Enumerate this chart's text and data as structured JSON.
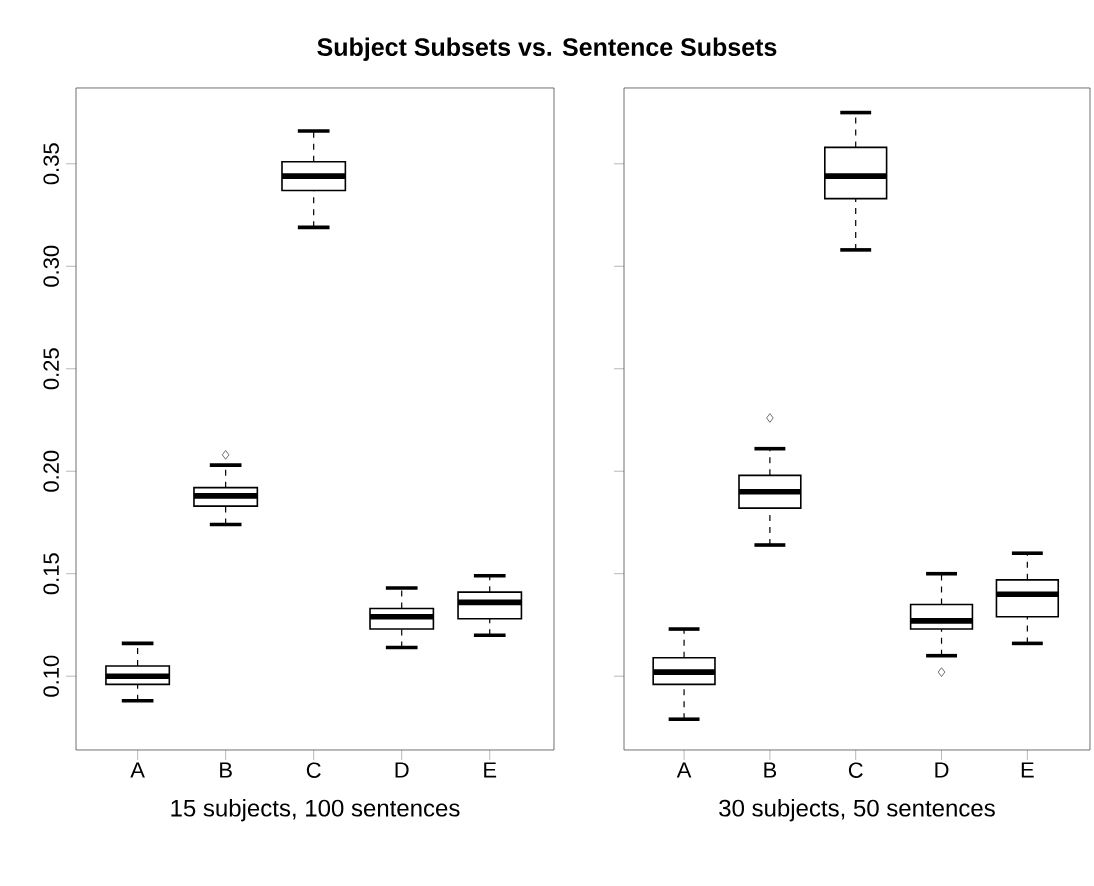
{
  "chart_data": [
    {
      "type": "box",
      "title": "Subject Subsets vs. Sentence Subsets",
      "xlabel": "15 subjects, 100 sentences",
      "categories": [
        "A",
        "B",
        "C",
        "D",
        "E"
      ],
      "boxes": [
        {
          "low": 0.088,
          "q1": 0.096,
          "median": 0.1,
          "q3": 0.105,
          "high": 0.116
        },
        {
          "low": 0.174,
          "q1": 0.183,
          "median": 0.188,
          "q3": 0.192,
          "high": 0.203,
          "outliers": [
            0.208
          ]
        },
        {
          "low": 0.319,
          "q1": 0.337,
          "median": 0.344,
          "q3": 0.351,
          "high": 0.366
        },
        {
          "low": 0.114,
          "q1": 0.123,
          "median": 0.129,
          "q3": 0.133,
          "high": 0.143
        },
        {
          "low": 0.12,
          "q1": 0.128,
          "median": 0.136,
          "q3": 0.141,
          "high": 0.149
        }
      ],
      "ylim": [
        0.064,
        0.387
      ],
      "yticks": [
        {
          "value": 0.1,
          "label": "0.10"
        },
        {
          "value": 0.15,
          "label": "0.15"
        },
        {
          "value": 0.2,
          "label": "0.20"
        },
        {
          "value": 0.25,
          "label": "0.25"
        },
        {
          "value": 0.3,
          "label": "0.30"
        },
        {
          "value": 0.35,
          "label": "0.35"
        }
      ]
    },
    {
      "type": "box",
      "xlabel": "30 subjects, 50 sentences",
      "categories": [
        "A",
        "B",
        "C",
        "D",
        "E"
      ],
      "boxes": [
        {
          "low": 0.079,
          "q1": 0.096,
          "median": 0.102,
          "q3": 0.109,
          "high": 0.123
        },
        {
          "low": 0.164,
          "q1": 0.182,
          "median": 0.19,
          "q3": 0.198,
          "high": 0.211,
          "outliers": [
            0.226
          ]
        },
        {
          "low": 0.308,
          "q1": 0.333,
          "median": 0.344,
          "q3": 0.358,
          "high": 0.375
        },
        {
          "low": 0.11,
          "q1": 0.123,
          "median": 0.127,
          "q3": 0.135,
          "high": 0.15,
          "outliers": [
            0.102
          ]
        },
        {
          "low": 0.116,
          "q1": 0.129,
          "median": 0.14,
          "q3": 0.147,
          "high": 0.16
        }
      ],
      "ylim": [
        0.064,
        0.387
      ],
      "yticks": [
        0.1,
        0.15,
        0.2,
        0.25,
        0.3,
        0.35
      ],
      "tick_labels": "x"
    }
  ]
}
